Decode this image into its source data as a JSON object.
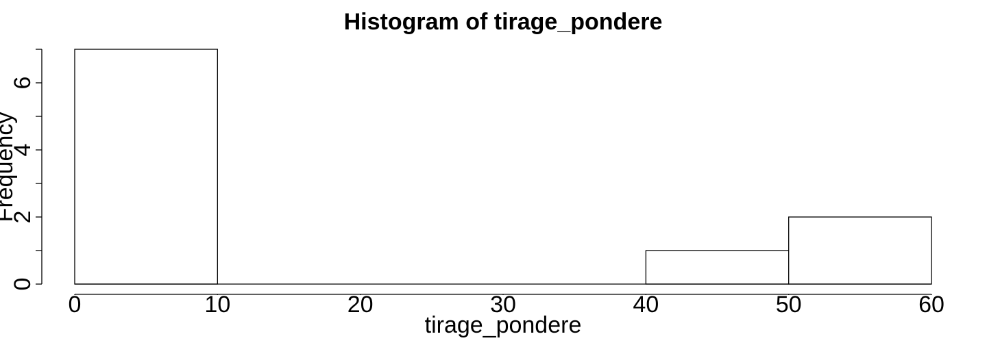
{
  "chart_data": {
    "type": "bar",
    "subtype": "histogram",
    "title": "Histogram of tirage_pondere",
    "xlabel": "tirage_pondere",
    "ylabel": "Frequency",
    "bins": [
      {
        "start": 0,
        "end": 10,
        "count": 7
      },
      {
        "start": 10,
        "end": 20,
        "count": 0
      },
      {
        "start": 20,
        "end": 30,
        "count": 0
      },
      {
        "start": 30,
        "end": 40,
        "count": 0
      },
      {
        "start": 40,
        "end": 50,
        "count": 1
      },
      {
        "start": 50,
        "end": 60,
        "count": 2
      }
    ],
    "xlim": [
      0,
      60
    ],
    "ylim": [
      0,
      7
    ],
    "x_ticks": [
      0,
      10,
      20,
      30,
      40,
      50,
      60
    ],
    "y_ticks_major": [
      0,
      2,
      4,
      6
    ],
    "y_ticks_all": [
      0,
      1,
      2,
      3,
      4,
      5,
      6,
      7
    ],
    "grid": false,
    "legend": "none",
    "colors": {
      "bar_fill": "#ffffff",
      "bar_stroke": "#000000"
    }
  }
}
